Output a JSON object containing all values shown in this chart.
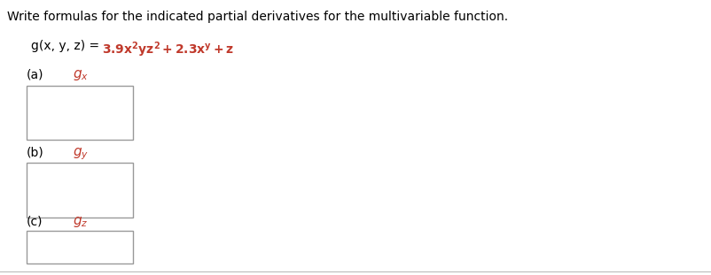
{
  "background_color": "#ffffff",
  "instruction_text": "Write formulas for the indicated partial derivatives for the multivariable function.",
  "instruction_color": "#000000",
  "instruction_fontsize": 10.0,
  "function_normal": "g(x, y, z) = ",
  "function_formula": "3.9x²yz² + 2.3xʸ + z",
  "function_formula_color": "#c0392b",
  "parts": [
    "(a)",
    "(b)",
    "(c)"
  ],
  "part_vars": [
    "x",
    "y",
    "z"
  ],
  "label_color": "#000000",
  "subscript_color": "#c0392b",
  "bottom_line_color": "#bbbbbb",
  "figsize": [
    8.03,
    3.11
  ],
  "dpi": 100
}
